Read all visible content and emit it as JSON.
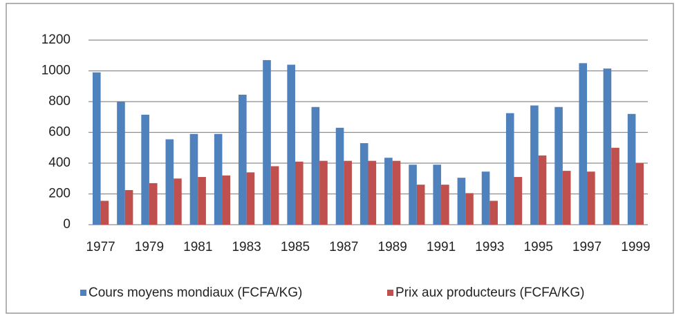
{
  "chart_data": {
    "type": "bar",
    "categories": [
      "1977",
      null,
      "1979",
      null,
      "1981",
      null,
      "1983",
      null,
      "1985",
      null,
      "1987",
      null,
      "1989",
      null,
      "1991",
      null,
      "1993",
      null,
      "1995",
      null,
      "1997",
      null,
      "1999"
    ],
    "series": [
      {
        "name": "Cours moyens mondiaux (FCFA/KG)",
        "color": "#4f81bd",
        "values": [
          990,
          800,
          715,
          555,
          590,
          590,
          845,
          1070,
          1040,
          765,
          630,
          530,
          435,
          390,
          390,
          305,
          345,
          725,
          775,
          765,
          1050,
          1015,
          720
        ]
      },
      {
        "name": "Prix aux producteurs (FCFA/KG)",
        "color": "#c0504d",
        "values": [
          155,
          225,
          270,
          300,
          310,
          320,
          340,
          380,
          410,
          415,
          415,
          415,
          415,
          260,
          260,
          205,
          155,
          310,
          450,
          350,
          345,
          500,
          400
        ]
      }
    ],
    "ylim": [
      0,
      1200
    ],
    "yticks": [
      0,
      200,
      400,
      600,
      800,
      1000,
      1200
    ],
    "grid": true,
    "legend": "bottom"
  }
}
